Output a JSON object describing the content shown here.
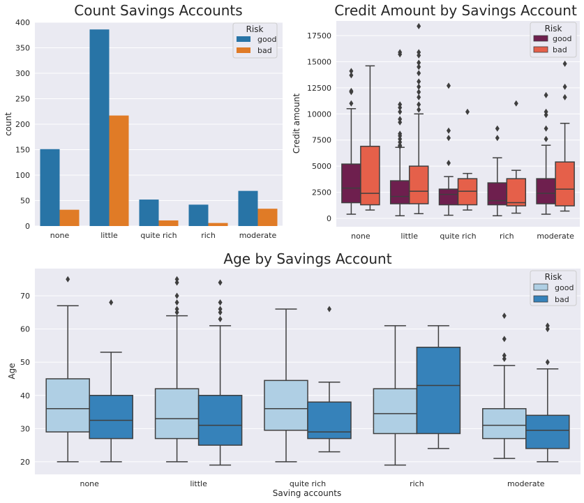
{
  "chart_data": [
    {
      "type": "bar",
      "title": "Count Savings Accounts",
      "xlabel": "",
      "ylabel": "count",
      "ylim": [
        0,
        400
      ],
      "yticks": [
        0,
        50,
        100,
        150,
        200,
        250,
        300,
        350,
        400
      ],
      "categories": [
        "none",
        "little",
        "quite rich",
        "rich",
        "moderate"
      ],
      "legend_title": "Risk",
      "legend_position": "top-right",
      "grid": true,
      "series": [
        {
          "name": "good",
          "color": "#2874a6",
          "values": [
            151,
            386,
            52,
            42,
            69
          ]
        },
        {
          "name": "bad",
          "color": "#e07b26",
          "values": [
            32,
            217,
            11,
            6,
            34
          ]
        }
      ]
    },
    {
      "type": "box",
      "title": "Credit Amount by Savings Account",
      "xlabel": "",
      "ylabel": "Credit amount",
      "ylim": [
        -800,
        18900
      ],
      "yticks": [
        0,
        2500,
        5000,
        7500,
        10000,
        12500,
        15000,
        17500
      ],
      "categories": [
        "none",
        "little",
        "quite rich",
        "rich",
        "moderate"
      ],
      "legend_title": "Risk",
      "legend_position": "top-right",
      "grid": true,
      "series": [
        {
          "name": "good",
          "color": "#6e1f4e",
          "boxes": [
            {
              "whislo": 400,
              "q1": 1500,
              "med": 2900,
              "q3": 5200,
              "whishi": 10500,
              "fliers": [
                11000,
                12100,
                12200,
                13700,
                14100
              ]
            },
            {
              "whislo": 250,
              "q1": 1400,
              "med": 2100,
              "q3": 3600,
              "whishi": 6800,
              "fliers": [
                6900,
                7000,
                7300,
                7600,
                7900,
                8100,
                9200,
                9500,
                10200,
                10600,
                10900,
                15700,
                15900
              ]
            },
            {
              "whislo": 300,
              "q1": 1300,
              "med": 2300,
              "q3": 2800,
              "whishi": 4000,
              "fliers": [
                5300,
                7700,
                8400,
                12700
              ]
            },
            {
              "whislo": 250,
              "q1": 1300,
              "med": 1700,
              "q3": 3400,
              "whishi": 5800,
              "fliers": [
                7700,
                8600
              ]
            },
            {
              "whislo": 400,
              "q1": 1400,
              "med": 2400,
              "q3": 3800,
              "whishi": 7000,
              "fliers": [
                7600,
                8600,
                9900,
                10200,
                11800
              ]
            }
          ]
        },
        {
          "name": "bad",
          "color": "#e5604a",
          "boxes": [
            {
              "whislo": 800,
              "q1": 1300,
              "med": 2400,
              "q3": 6900,
              "whishi": 14600,
              "fliers": []
            },
            {
              "whislo": 450,
              "q1": 1400,
              "med": 2600,
              "q3": 5000,
              "whishi": 10000,
              "fliers": [
                10400,
                10900,
                11600,
                12100,
                12600,
                13100,
                13900,
                14500,
                14900,
                15600,
                15900,
                18400
              ]
            },
            {
              "whislo": 800,
              "q1": 1300,
              "med": 2600,
              "q3": 3800,
              "whishi": 4300,
              "fliers": [
                10200
              ]
            },
            {
              "whislo": 500,
              "q1": 1200,
              "med": 1500,
              "q3": 3800,
              "whishi": 4600,
              "fliers": [
                11000
              ]
            },
            {
              "whislo": 700,
              "q1": 1200,
              "med": 2800,
              "q3": 5400,
              "whishi": 9100,
              "fliers": [
                11600,
                12600,
                14800
              ]
            }
          ]
        }
      ]
    },
    {
      "type": "box",
      "title": "Age by Savings Account",
      "xlabel": "Saving accounts",
      "ylabel": "Age",
      "ylim": [
        16.2,
        78.2
      ],
      "yticks": [
        20,
        30,
        40,
        50,
        60,
        70
      ],
      "categories": [
        "none",
        "little",
        "quite rich",
        "rich",
        "moderate"
      ],
      "legend_title": "Risk",
      "legend_position": "top-right",
      "grid": true,
      "series": [
        {
          "name": "good",
          "color": "#afcfe4",
          "boxes": [
            {
              "whislo": 20,
              "q1": 29,
              "med": 36,
              "q3": 45,
              "whishi": 67,
              "fliers": [
                75
              ]
            },
            {
              "whislo": 20,
              "q1": 27,
              "med": 33,
              "q3": 42,
              "whishi": 64,
              "fliers": [
                65,
                66,
                68,
                70,
                74,
                75
              ]
            },
            {
              "whislo": 20,
              "q1": 29.5,
              "med": 36,
              "q3": 44.5,
              "whishi": 66,
              "fliers": []
            },
            {
              "whislo": 19,
              "q1": 28.5,
              "med": 34.5,
              "q3": 42,
              "whishi": 61,
              "fliers": []
            },
            {
              "whislo": 21,
              "q1": 27,
              "med": 31,
              "q3": 36,
              "whishi": 49,
              "fliers": [
                51,
                52,
                57,
                64
              ]
            }
          ]
        },
        {
          "name": "bad",
          "color": "#3682ba",
          "boxes": [
            {
              "whislo": 20,
              "q1": 27,
              "med": 32.5,
              "q3": 40,
              "whishi": 53,
              "fliers": [
                68
              ]
            },
            {
              "whislo": 19,
              "q1": 25,
              "med": 31,
              "q3": 40,
              "whishi": 61,
              "fliers": [
                63,
                65,
                66,
                68,
                74
              ]
            },
            {
              "whislo": 23,
              "q1": 27,
              "med": 29,
              "q3": 38,
              "whishi": 44,
              "fliers": [
                66
              ]
            },
            {
              "whislo": 24,
              "q1": 28.5,
              "med": 43,
              "q3": 54.5,
              "whishi": 61,
              "fliers": []
            },
            {
              "whislo": 20,
              "q1": 24,
              "med": 29.5,
              "q3": 34,
              "whishi": 48,
              "fliers": [
                50,
                60,
                61
              ]
            }
          ]
        }
      ]
    }
  ]
}
